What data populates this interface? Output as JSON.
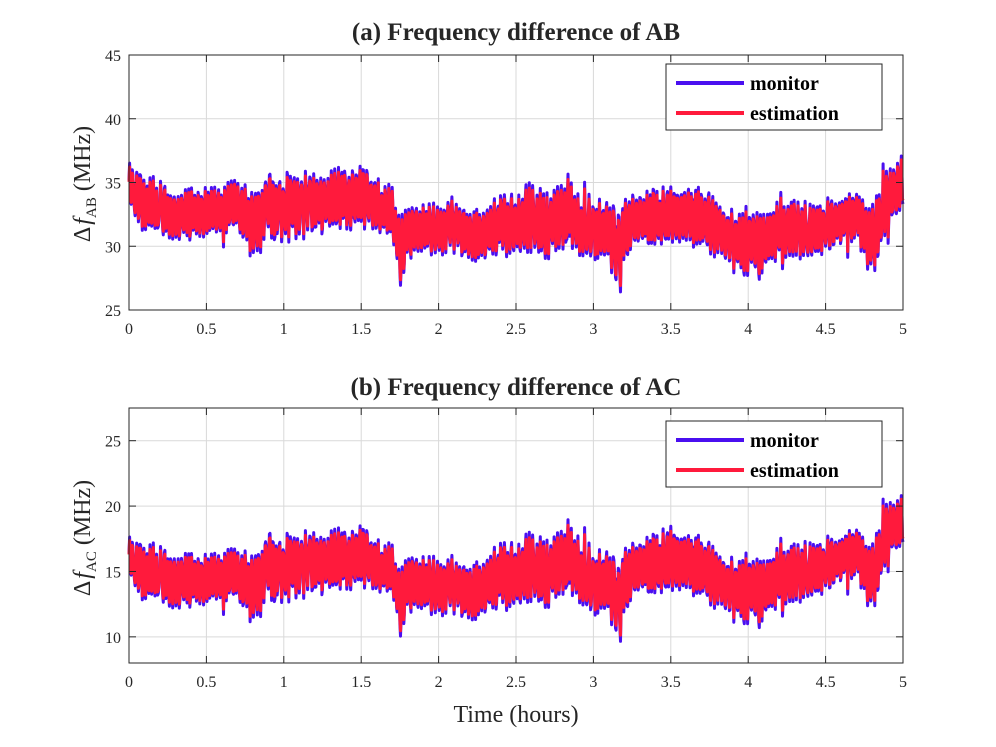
{
  "chart_data": [
    {
      "type": "line",
      "id": "ab",
      "title": "(a) Frequency difference of AB",
      "ylabel_prefix": "Δ",
      "ylabel_var": "f",
      "ylabel_sub": "AB",
      "ylabel_unit": "(MHz)",
      "xlabel": "",
      "xlim": [
        0,
        5
      ],
      "ylim": [
        25,
        45
      ],
      "xticks": [
        0,
        0.5,
        1,
        1.5,
        2,
        2.5,
        3,
        3.5,
        4,
        4.5,
        5
      ],
      "xtick_labels": [
        "0",
        "0.5",
        "1",
        "1.5",
        "2",
        "2.5",
        "3",
        "3.5",
        "4",
        "4.5",
        "5"
      ],
      "yticks": [
        25,
        30,
        35,
        40,
        45
      ],
      "ytick_labels": [
        "25",
        "30",
        "35",
        "40",
        "45"
      ],
      "grid": true,
      "legend_position": "top-right",
      "series": [
        {
          "name": "monitor",
          "color": "#4a0ff0"
        },
        {
          "name": "estimation",
          "color": "#ff1a3c"
        }
      ],
      "x": [
        0.0,
        0.1,
        0.2,
        0.3,
        0.4,
        0.5,
        0.6,
        0.7,
        0.8,
        0.9,
        1.0,
        1.1,
        1.2,
        1.3,
        1.4,
        1.5,
        1.6,
        1.7,
        1.76,
        1.8,
        1.9,
        2.0,
        2.1,
        2.2,
        2.3,
        2.4,
        2.5,
        2.6,
        2.7,
        2.8,
        2.85,
        2.9,
        3.0,
        3.1,
        3.17,
        3.2,
        3.3,
        3.4,
        3.5,
        3.6,
        3.7,
        3.8,
        3.9,
        4.0,
        4.1,
        4.2,
        4.3,
        4.4,
        4.5,
        4.6,
        4.7,
        4.8,
        4.9,
        5.0
      ],
      "values_center": [
        34.5,
        33.2,
        33.0,
        32.3,
        32.6,
        32.5,
        32.7,
        33.2,
        31.8,
        33.3,
        33.0,
        33.4,
        33.3,
        33.6,
        33.6,
        34.0,
        33.2,
        32.5,
        29.5,
        31.0,
        31.5,
        31.3,
        31.7,
        30.8,
        30.9,
        31.8,
        31.6,
        32.2,
        31.6,
        32.2,
        33.0,
        31.5,
        31.6,
        31.0,
        29.5,
        31.5,
        32.0,
        32.3,
        32.4,
        32.5,
        32.2,
        31.5,
        30.3,
        30.2,
        30.5,
        31.2,
        31.5,
        31.1,
        31.6,
        32.0,
        32.4,
        30.5,
        33.5,
        35.2
      ],
      "values_amplitude": [
        2.0,
        2.3,
        2.2,
        2.0,
        2.2,
        2.0,
        2.2,
        2.0,
        3.0,
        2.7,
        2.6,
        2.7,
        2.5,
        2.6,
        2.5,
        2.6,
        2.1,
        2.3,
        3.2,
        2.2,
        2.0,
        2.0,
        2.2,
        2.1,
        2.1,
        2.4,
        2.6,
        2.8,
        2.6,
        2.8,
        3.0,
        2.5,
        2.4,
        2.5,
        3.5,
        2.3,
        2.3,
        2.3,
        2.3,
        2.3,
        2.4,
        2.3,
        2.4,
        2.6,
        2.6,
        2.3,
        2.3,
        2.2,
        2.0,
        2.1,
        2.0,
        3.0,
        2.5,
        2.7
      ]
    },
    {
      "type": "line",
      "id": "ac",
      "title": "(b) Frequency difference of AC",
      "ylabel_prefix": "Δ",
      "ylabel_var": "f",
      "ylabel_sub": "AC",
      "ylabel_unit": "(MHz)",
      "xlabel": "Time (hours)",
      "xlim": [
        0,
        5
      ],
      "ylim": [
        8,
        27.5
      ],
      "xticks": [
        0,
        0.5,
        1,
        1.5,
        2,
        2.5,
        3,
        3.5,
        4,
        4.5,
        5
      ],
      "xtick_labels": [
        "0",
        "0.5",
        "1",
        "1.5",
        "2",
        "2.5",
        "3",
        "3.5",
        "4",
        "4.5",
        "5"
      ],
      "yticks": [
        10,
        15,
        20,
        25
      ],
      "ytick_labels": [
        "10",
        "15",
        "20",
        "25"
      ],
      "grid": true,
      "legend_position": "top-right",
      "series": [
        {
          "name": "monitor",
          "color": "#4a0ff0"
        },
        {
          "name": "estimation",
          "color": "#ff1a3c"
        }
      ],
      "x": [
        0.0,
        0.1,
        0.2,
        0.3,
        0.4,
        0.5,
        0.6,
        0.7,
        0.8,
        0.9,
        1.0,
        1.1,
        1.2,
        1.3,
        1.4,
        1.5,
        1.6,
        1.7,
        1.76,
        1.8,
        1.9,
        2.0,
        2.1,
        2.2,
        2.3,
        2.4,
        2.5,
        2.6,
        2.7,
        2.8,
        2.85,
        2.9,
        3.0,
        3.1,
        3.17,
        3.2,
        3.3,
        3.4,
        3.5,
        3.6,
        3.7,
        3.8,
        3.9,
        4.0,
        4.1,
        4.2,
        4.3,
        4.4,
        4.5,
        4.6,
        4.7,
        4.8,
        4.9,
        5.0
      ],
      "values_center": [
        15.8,
        14.8,
        14.8,
        14.2,
        14.4,
        14.2,
        14.5,
        14.7,
        13.8,
        15.5,
        15.2,
        15.7,
        15.6,
        15.8,
        15.8,
        16.3,
        15.4,
        15.0,
        12.5,
        14.0,
        14.2,
        13.8,
        14.0,
        13.3,
        13.8,
        14.8,
        14.6,
        15.3,
        14.8,
        15.6,
        16.3,
        15.0,
        14.4,
        14.0,
        12.5,
        14.5,
        15.2,
        15.6,
        15.9,
        15.8,
        15.3,
        14.5,
        13.5,
        13.5,
        13.8,
        14.5,
        15.0,
        15.0,
        15.5,
        16.0,
        16.5,
        14.5,
        18.0,
        19.0
      ],
      "values_amplitude": [
        1.8,
        2.3,
        2.2,
        2.3,
        2.2,
        2.0,
        2.2,
        2.0,
        3.0,
        2.8,
        2.5,
        2.6,
        2.5,
        2.6,
        2.4,
        2.5,
        2.0,
        2.2,
        3.0,
        2.3,
        2.2,
        2.2,
        2.2,
        2.3,
        2.2,
        2.6,
        2.7,
        2.7,
        2.6,
        2.7,
        3.0,
        2.6,
        2.5,
        2.6,
        3.2,
        2.4,
        2.3,
        2.4,
        2.6,
        2.3,
        2.4,
        2.3,
        2.4,
        2.6,
        2.6,
        2.3,
        2.3,
        2.2,
        2.0,
        2.0,
        2.0,
        2.8,
        2.3,
        2.5
      ]
    }
  ]
}
